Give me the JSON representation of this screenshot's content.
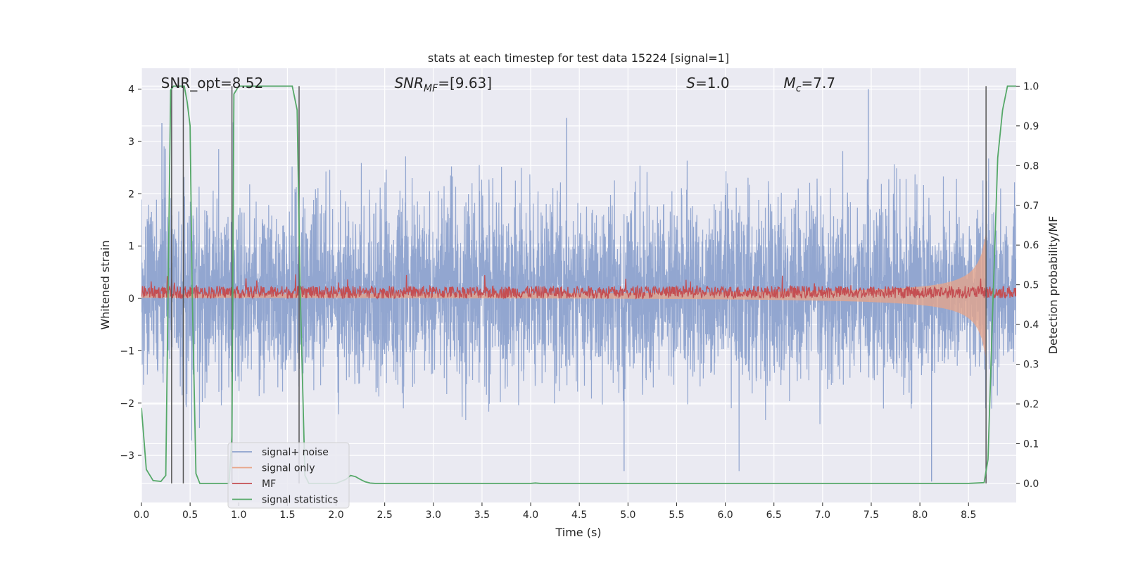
{
  "chart_data": {
    "type": "line",
    "title": "stats at each timestep for test data 15224 [signal=1]",
    "xlabel": "Time (s)",
    "ylabel_left": "Whitened strain",
    "ylabel_right": "Detection probability/MF",
    "xlim": [
      0.0,
      8.99
    ],
    "ylim_left": [
      -3.9,
      4.4
    ],
    "ylim_right": [
      -0.048,
      1.045
    ],
    "xticks": [
      "0.0",
      "0.5",
      "1.0",
      "1.5",
      "2.0",
      "2.5",
      "3.0",
      "3.5",
      "4.0",
      "4.5",
      "5.0",
      "5.5",
      "6.0",
      "6.5",
      "7.0",
      "7.5",
      "8.0",
      "8.5"
    ],
    "yticks_left": [
      "4",
      "3",
      "2",
      "1",
      "0",
      "−1",
      "−2",
      "−3"
    ],
    "yticks_right": [
      "1.0",
      "0.9",
      "0.8",
      "0.7",
      "0.6",
      "0.5",
      "0.4",
      "0.3",
      "0.2",
      "0.1",
      "0.0"
    ],
    "grid": true,
    "legend_position": "lower-left",
    "annotations": [
      {
        "text": "SNR_opt=8.52",
        "x": 0.2
      },
      {
        "text": "SNR_MF=[9.63]",
        "x": 2.6
      },
      {
        "text": "S=1.0",
        "x": 5.6
      },
      {
        "text": "M_c=7.7",
        "x": 6.6
      }
    ],
    "series": [
      {
        "name": "signal+ noise",
        "color": "#8da2cd",
        "axis": "left",
        "description_values": {
          "band_inner": [
            -0.5,
            0.9
          ],
          "band_outer": [
            -2.5,
            2.6
          ],
          "peak_max": 4.0,
          "peak_min": -3.5
        }
      },
      {
        "name": "signal only",
        "color": "#e8a488",
        "axis": "left",
        "chirp": {
          "envelope_start": 0.02,
          "envelope_end": 1.2,
          "t_end": 8.68
        }
      },
      {
        "name": "MF",
        "color": "#c44e52",
        "axis": "left",
        "band": {
          "center": 0.12,
          "halfwidth": 0.12,
          "spike_max": 0.5
        }
      },
      {
        "name": "signal statistics",
        "color": "#55a868",
        "axis": "right",
        "x": [
          0.0,
          0.05,
          0.12,
          0.2,
          0.25,
          0.3,
          0.33,
          0.38,
          0.42,
          0.44,
          0.47,
          0.5,
          0.52,
          0.56,
          0.6,
          0.65,
          0.8,
          0.9,
          0.93,
          0.95,
          1.0,
          1.05,
          1.2,
          1.4,
          1.55,
          1.6,
          1.63,
          1.68,
          1.72,
          1.8,
          2.0,
          2.1,
          2.15,
          2.2,
          2.25,
          2.3,
          2.35,
          2.4,
          3.0,
          3.5,
          4.0,
          4.05,
          4.1,
          5.0,
          6.0,
          7.0,
          8.0,
          8.5,
          8.66,
          8.7,
          8.75,
          8.8,
          8.85,
          8.9,
          8.99
        ],
        "y": [
          0.19,
          0.035,
          0.007,
          0.005,
          0.02,
          0.99,
          1.0,
          1.0,
          1.0,
          1.0,
          0.96,
          0.9,
          0.5,
          0.025,
          0.0,
          0.0,
          0.0,
          0.0,
          0.12,
          0.98,
          1.0,
          1.0,
          1.0,
          1.0,
          1.0,
          0.94,
          0.5,
          0.02,
          0.0,
          0.0,
          0.0,
          0.01,
          0.02,
          0.017,
          0.01,
          0.004,
          0.001,
          0.0,
          0.0,
          0.0,
          0.0,
          0.001,
          0.0,
          0.0,
          0.0,
          0.0,
          0.0,
          0.0,
          0.002,
          0.06,
          0.45,
          0.82,
          0.94,
          1.0,
          1.0
        ]
      },
      {
        "name": "vertical markers",
        "color": "#555555",
        "axis": "right",
        "x": [
          0.31,
          0.43,
          0.93,
          1.62,
          8.68
        ]
      }
    ]
  }
}
